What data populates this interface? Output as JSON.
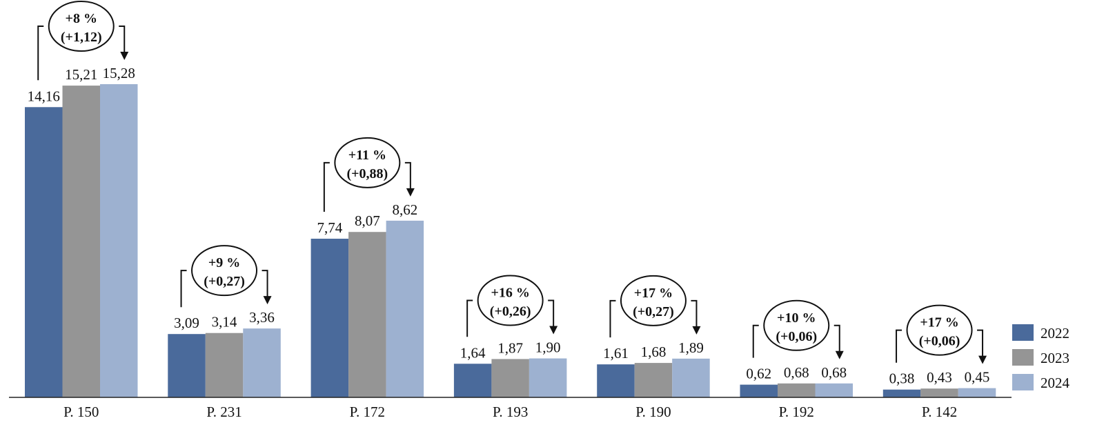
{
  "chart_data": {
    "type": "bar",
    "categories": [
      "P. 150",
      "P. 231",
      "P. 172",
      "P. 193",
      "P. 190",
      "P. 192",
      "P. 142"
    ],
    "series": [
      {
        "name": "2022",
        "color": "#4a6a9b",
        "values": [
          14.16,
          3.09,
          7.74,
          1.64,
          1.61,
          0.62,
          0.38
        ],
        "labels": [
          "14,16",
          "3,09",
          "7,74",
          "1,64",
          "1,61",
          "0,62",
          "0,38"
        ]
      },
      {
        "name": "2023",
        "color": "#959595",
        "values": [
          15.21,
          3.14,
          8.07,
          1.87,
          1.68,
          0.68,
          0.43
        ],
        "labels": [
          "15,21",
          "3,14",
          "8,07",
          "1,87",
          "1,68",
          "0,68",
          "0,43"
        ]
      },
      {
        "name": "2024",
        "color": "#9db1d0",
        "values": [
          15.28,
          3.36,
          8.62,
          1.9,
          1.89,
          0.68,
          0.45
        ],
        "labels": [
          "15,28",
          "3,36",
          "8,62",
          "1,90",
          "1,89",
          "0,68",
          "0,45"
        ]
      }
    ],
    "annotations": [
      {
        "pct": "+8 %",
        "abs": "(+1,12)"
      },
      {
        "pct": "+9 %",
        "abs": "(+0,27)"
      },
      {
        "pct": "+11 %",
        "abs": "(+0,88)"
      },
      {
        "pct": "+16 %",
        "abs": "(+0,26)"
      },
      {
        "pct": "+17 %",
        "abs": "(+0,27)"
      },
      {
        "pct": "+10 %",
        "abs": "(+0,06)"
      },
      {
        "pct": "+17 %",
        "abs": "(+0,06)"
      }
    ],
    "ylim": [
      0,
      16
    ],
    "legend": "right",
    "grid": false
  }
}
